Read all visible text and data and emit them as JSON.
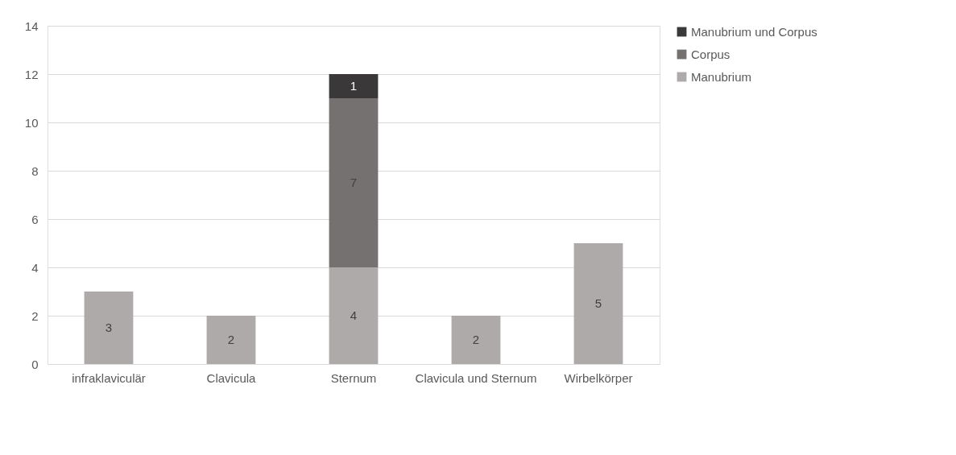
{
  "chart_data": {
    "type": "bar",
    "stacked": true,
    "categories": [
      "infraklaviculär",
      "Clavicula",
      "Sternum",
      "Clavicula und Sternum",
      "Wirbelkörper"
    ],
    "series": [
      {
        "name": "Manubrium",
        "color": "#aeaaaa",
        "values": [
          3,
          2,
          4,
          2,
          5
        ]
      },
      {
        "name": "Corpus",
        "color": "#757171",
        "values": [
          null,
          null,
          7,
          null,
          null
        ]
      },
      {
        "name": "Manubrium und Corpus",
        "color": "#3a3838",
        "values": [
          null,
          null,
          1,
          null,
          null
        ]
      }
    ],
    "ylim": [
      0,
      14
    ],
    "yticks": [
      0,
      2,
      4,
      6,
      8,
      10,
      12,
      14
    ],
    "grid": "y",
    "legend": "right",
    "data_labels": true
  }
}
